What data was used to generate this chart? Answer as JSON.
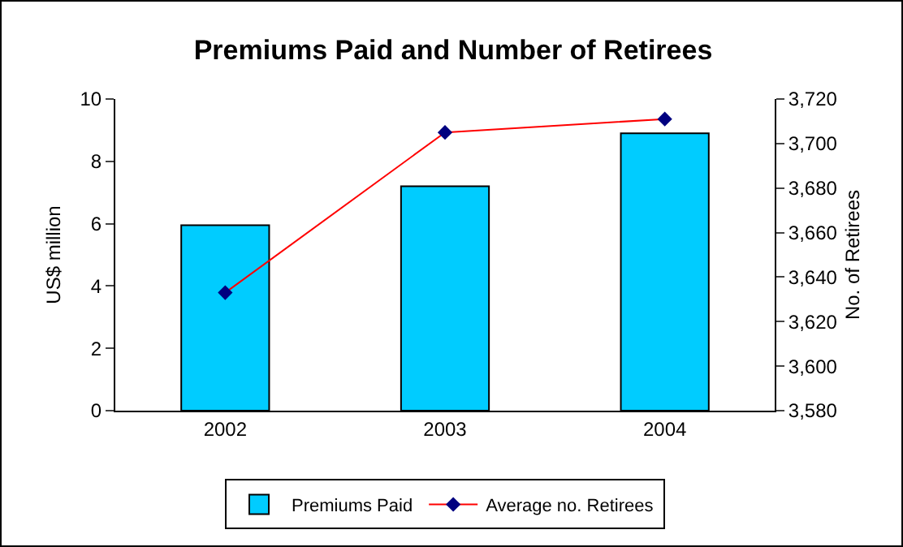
{
  "chart_data": {
    "type": "bar",
    "title": "Premiums Paid and Number of Retirees",
    "ylabel": "US$ million",
    "y2label": "No. of Retirees",
    "categories": [
      "2002",
      "2003",
      "2004"
    ],
    "series": [
      {
        "name": "Premiums Paid",
        "color": "#00ccff",
        "values": [
          5.95,
          7.2,
          8.9
        ]
      },
      {
        "name": "Average no. Retirees",
        "type": "line",
        "axis": "y2",
        "color": "#ff0000",
        "values": [
          3633,
          3705,
          3711
        ]
      }
    ],
    "ylim": [
      0,
      10
    ],
    "yticks": [
      0,
      2,
      4,
      6,
      8,
      10
    ],
    "y2lim": [
      3580,
      3720
    ],
    "y2ticks": [
      {
        "value": 3580,
        "label": "3,580"
      },
      {
        "value": 3600,
        "label": "3,600"
      },
      {
        "value": 3620,
        "label": "3,620"
      },
      {
        "value": 3640,
        "label": "3,640"
      },
      {
        "value": 3660,
        "label": "3,660"
      },
      {
        "value": 3680,
        "label": "3,680"
      },
      {
        "value": 3700,
        "label": "3,700"
      },
      {
        "value": 3720,
        "label": "3,720"
      }
    ],
    "marker": "diamond",
    "grid": false,
    "legend": "bottom"
  }
}
